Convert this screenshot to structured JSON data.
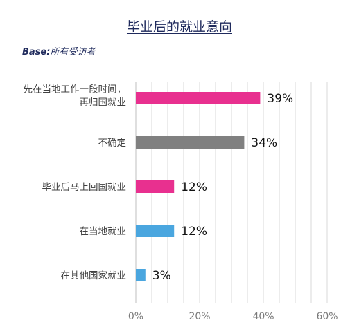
{
  "chart_data": {
    "type": "bar",
    "orientation": "horizontal",
    "title": "毕业后的就业意向",
    "subtitle_label": "Base:",
    "subtitle_note": "所有受访者",
    "categories": [
      [
        "先在当地工作一段时间，",
        "再归国就业"
      ],
      [
        "不确定"
      ],
      [
        "毕业后马上回国就业"
      ],
      [
        "在当地就业"
      ],
      [
        "在其他国家就业"
      ]
    ],
    "values": [
      39,
      34,
      12,
      12,
      3
    ],
    "value_labels": [
      "39%",
      "34%",
      "12%",
      "12%",
      "3%"
    ],
    "bar_colors": [
      "#e8308f",
      "#808080",
      "#e8308f",
      "#4aa6df",
      "#4aa6df"
    ],
    "xlim": [
      0,
      60
    ],
    "xticks": [
      0,
      20,
      40,
      60
    ],
    "xtick_labels": [
      "0%",
      "20%",
      "40%",
      "60%"
    ],
    "grid": true,
    "legend": "none"
  }
}
